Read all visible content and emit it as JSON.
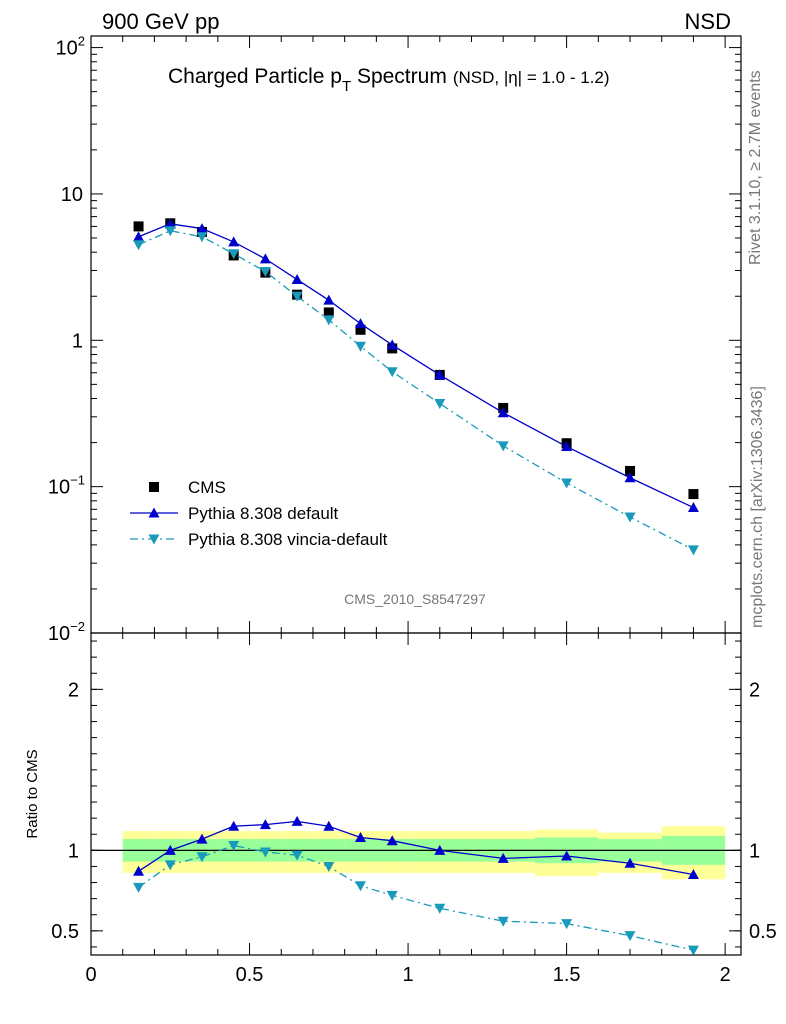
{
  "header": {
    "left": "900 GeV pp",
    "right": "NSD"
  },
  "side_labels": {
    "top": "Rivet 3.1.10, ≥ 2.7M events",
    "bottom": "mcplots.cern.ch [arXiv:1306.3436]"
  },
  "title": {
    "main_prefix": "Charged Particle p",
    "main_sub": "T",
    "main_suffix": " Spectrum",
    "detail": "(NSD, |η| = 1.0 - 1.2)"
  },
  "watermark": "CMS_2010_S8547297",
  "legend": [
    {
      "label": "CMS",
      "marker": "square",
      "color": "#000000"
    },
    {
      "label": "Pythia 8.308 default",
      "marker": "triangle-up",
      "color": "#0000cc"
    },
    {
      "label": "Pythia 8.308 vincia-default",
      "marker": "triangle-down",
      "color": "#1a9aba"
    }
  ],
  "ratio_ylabel": "Ratio to CMS",
  "chart_data": [
    {
      "type": "scatter",
      "panel": "main",
      "yscale": "log",
      "xlim": [
        0,
        2.05
      ],
      "ylim": [
        0.01,
        120
      ],
      "y_ticks": [
        {
          "value": 100,
          "label": "10",
          "exp": "2"
        },
        {
          "value": 10,
          "label": "10",
          "exp": ""
        },
        {
          "value": 1,
          "label": "1",
          "exp": ""
        },
        {
          "value": 0.1,
          "label": "10",
          "exp": "−1"
        },
        {
          "value": 0.01,
          "label": "10",
          "exp": "−2"
        }
      ],
      "legend_position": "lower-left",
      "series": [
        {
          "name": "CMS",
          "color": "#000000",
          "style": "markers",
          "marker": "square",
          "x": [
            0.15,
            0.25,
            0.35,
            0.45,
            0.55,
            0.65,
            0.75,
            0.85,
            0.95,
            1.1,
            1.3,
            1.5,
            1.7,
            1.9
          ],
          "y": [
            6.0,
            6.3,
            5.5,
            3.8,
            2.9,
            2.05,
            1.55,
            1.18,
            0.88,
            0.58,
            0.345,
            0.198,
            0.128,
            0.089
          ]
        },
        {
          "name": "Pythia 8.308 default",
          "color": "#0000cc",
          "style": "solid",
          "marker": "triangle-up",
          "x": [
            0.15,
            0.25,
            0.35,
            0.45,
            0.55,
            0.65,
            0.75,
            0.85,
            0.95,
            1.1,
            1.3,
            1.5,
            1.7,
            1.9
          ],
          "y": [
            5.1,
            6.25,
            5.8,
            4.7,
            3.6,
            2.6,
            1.88,
            1.3,
            0.93,
            0.58,
            0.32,
            0.188,
            0.115,
            0.072
          ]
        },
        {
          "name": "Pythia 8.308 vincia-default",
          "color": "#1a9aba",
          "style": "dashdot",
          "marker": "triangle-down",
          "x": [
            0.15,
            0.25,
            0.35,
            0.45,
            0.55,
            0.65,
            0.75,
            0.85,
            0.95,
            1.1,
            1.3,
            1.5,
            1.7,
            1.9
          ],
          "y": [
            4.5,
            5.6,
            5.1,
            3.9,
            2.95,
            2.0,
            1.38,
            0.91,
            0.61,
            0.37,
            0.19,
            0.106,
            0.062,
            0.037
          ]
        }
      ]
    },
    {
      "type": "line",
      "panel": "ratio",
      "xlim": [
        0,
        2.05
      ],
      "ylim": [
        0.35,
        2.35
      ],
      "x_ticks": [
        {
          "value": 0,
          "label": "0"
        },
        {
          "value": 0.5,
          "label": "0.5"
        },
        {
          "value": 1,
          "label": "1"
        },
        {
          "value": 1.5,
          "label": "1.5"
        },
        {
          "value": 2,
          "label": "2"
        }
      ],
      "y_ticks": [
        {
          "value": 0.5,
          "label": "0.5"
        },
        {
          "value": 1,
          "label": "1"
        },
        {
          "value": 2,
          "label": "2"
        }
      ],
      "reference_line": 1,
      "uncertainty_bands": {
        "bins": [
          [
            0.1,
            0.2
          ],
          [
            0.2,
            0.3
          ],
          [
            0.3,
            0.4
          ],
          [
            0.4,
            0.5
          ],
          [
            0.5,
            0.6
          ],
          [
            0.6,
            0.7
          ],
          [
            0.7,
            0.8
          ],
          [
            0.8,
            0.9
          ],
          [
            0.9,
            1.0
          ],
          [
            1.0,
            1.2
          ],
          [
            1.2,
            1.4
          ],
          [
            1.4,
            1.6
          ],
          [
            1.6,
            1.8
          ],
          [
            1.8,
            2.0
          ]
        ],
        "stat_color": "#99ff99",
        "syst_color": "#ffff99",
        "inner_low": [
          0.93,
          0.93,
          0.93,
          0.93,
          0.93,
          0.93,
          0.93,
          0.93,
          0.93,
          0.93,
          0.93,
          0.92,
          0.93,
          0.91
        ],
        "inner_high": [
          1.07,
          1.07,
          1.07,
          1.07,
          1.07,
          1.07,
          1.07,
          1.07,
          1.07,
          1.07,
          1.07,
          1.08,
          1.07,
          1.09
        ],
        "outer_low": [
          0.86,
          0.86,
          0.86,
          0.86,
          0.86,
          0.86,
          0.86,
          0.86,
          0.86,
          0.86,
          0.86,
          0.84,
          0.86,
          0.82
        ],
        "outer_high": [
          1.12,
          1.12,
          1.12,
          1.12,
          1.12,
          1.12,
          1.12,
          1.12,
          1.12,
          1.12,
          1.12,
          1.13,
          1.11,
          1.15
        ]
      },
      "series": [
        {
          "name": "Pythia 8.308 default",
          "color": "#0000cc",
          "style": "solid",
          "marker": "triangle-up",
          "x": [
            0.15,
            0.25,
            0.35,
            0.45,
            0.55,
            0.65,
            0.75,
            0.85,
            0.95,
            1.1,
            1.3,
            1.5,
            1.7,
            1.9
          ],
          "y": [
            0.87,
            1.0,
            1.07,
            1.15,
            1.16,
            1.18,
            1.15,
            1.08,
            1.06,
            1.0,
            0.95,
            0.965,
            0.92,
            0.85
          ]
        },
        {
          "name": "Pythia 8.308 vincia-default",
          "color": "#1a9aba",
          "style": "dashdot",
          "marker": "triangle-down",
          "x": [
            0.15,
            0.25,
            0.35,
            0.45,
            0.55,
            0.65,
            0.75,
            0.85,
            0.95,
            1.1,
            1.3,
            1.5,
            1.7,
            1.9
          ],
          "y": [
            0.77,
            0.91,
            0.96,
            1.03,
            0.99,
            0.97,
            0.9,
            0.78,
            0.72,
            0.64,
            0.56,
            0.545,
            0.47,
            0.38
          ]
        }
      ]
    }
  ]
}
